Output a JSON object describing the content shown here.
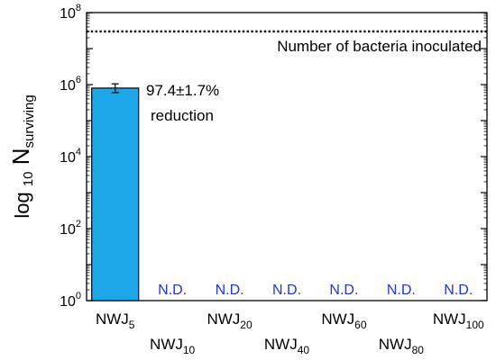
{
  "chart_data": {
    "type": "bar",
    "ylabel": {
      "prefix": "log",
      "prefix_sub": "10",
      "main": "N",
      "main_sub": "surviving"
    },
    "y_scale": "log",
    "ylim": [
      1,
      100000000
    ],
    "y_ticks": [
      {
        "value": 1,
        "base": "10",
        "exp": "0"
      },
      {
        "value": 100,
        "base": "10",
        "exp": "2"
      },
      {
        "value": 10000,
        "base": "10",
        "exp": "4"
      },
      {
        "value": 1000000,
        "base": "10",
        "exp": "6"
      },
      {
        "value": 100000000,
        "base": "10",
        "exp": "8"
      }
    ],
    "categories": [
      {
        "base": "NWJ",
        "sub": "5",
        "value": 800000,
        "error": [
          600000,
          1050000
        ],
        "label": ""
      },
      {
        "base": "NWJ",
        "sub": "10",
        "value": null,
        "label": "N.D."
      },
      {
        "base": "NWJ",
        "sub": "20",
        "value": null,
        "label": "N.D."
      },
      {
        "base": "NWJ",
        "sub": "40",
        "value": null,
        "label": "N.D."
      },
      {
        "base": "NWJ",
        "sub": "60",
        "value": null,
        "label": "N.D."
      },
      {
        "base": "NWJ",
        "sub": "80",
        "value": null,
        "label": "N.D."
      },
      {
        "base": "NWJ",
        "sub": "100",
        "value": null,
        "label": "N.D."
      }
    ],
    "reference_line": {
      "value": 30000000,
      "style": "dotted",
      "label": "Number of bacteria inoculated"
    },
    "annotation": {
      "line1": "97.4±1.7%",
      "line2": "reduction"
    },
    "colors": {
      "bar": "#1ea7e8",
      "nd_text": "#1f35d6"
    },
    "grid": false
  }
}
